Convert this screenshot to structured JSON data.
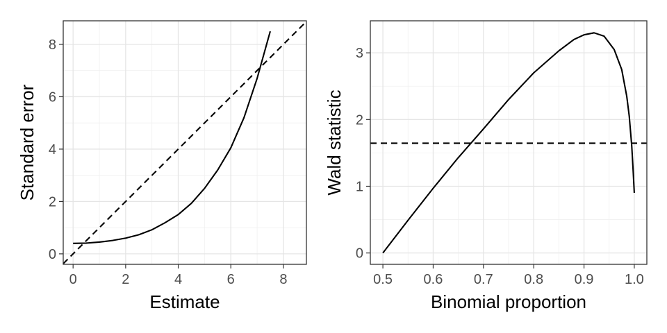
{
  "chart_data": [
    {
      "type": "line",
      "title": "",
      "xlabel": "Estimate",
      "ylabel": "Standard error",
      "xlim": [
        -0.375,
        8.875
      ],
      "ylim": [
        -0.4,
        8.9
      ],
      "xticks": [
        0,
        2,
        4,
        6,
        8
      ],
      "xtick_labels": [
        "0",
        "2",
        "4",
        "6",
        "8"
      ],
      "yticks": [
        0,
        2,
        4,
        6,
        8
      ],
      "ytick_labels": [
        "0",
        "2",
        "4",
        "6",
        "8"
      ],
      "grid": true,
      "series": [
        {
          "style": "solid",
          "color": "#000000",
          "x": [
            0,
            0.5,
            1,
            1.5,
            2,
            2.5,
            3,
            3.5,
            4,
            4.5,
            5,
            5.5,
            6,
            6.5,
            7,
            7.5
          ],
          "y": [
            0.4,
            0.41,
            0.45,
            0.51,
            0.6,
            0.73,
            0.92,
            1.19,
            1.5,
            1.93,
            2.5,
            3.2,
            4.05,
            5.2,
            6.7,
            8.5
          ]
        },
        {
          "style": "dashed",
          "color": "#000000",
          "x": [
            -0.375,
            8.875
          ],
          "y": [
            -0.375,
            8.875
          ]
        }
      ]
    },
    {
      "type": "line",
      "title": "",
      "xlabel": "Binomial proportion",
      "ylabel": "Wald statistic",
      "xlim": [
        0.475,
        1.025
      ],
      "ylim": [
        -0.17,
        3.48
      ],
      "xticks": [
        0.5,
        0.6,
        0.7,
        0.8,
        0.9,
        1.0
      ],
      "xtick_labels": [
        "0.5",
        "0.6",
        "0.7",
        "0.8",
        "0.9",
        "1.0"
      ],
      "yticks": [
        0,
        1,
        2,
        3
      ],
      "ytick_labels": [
        "0",
        "1",
        "2",
        "3"
      ],
      "grid": true,
      "series": [
        {
          "style": "solid",
          "color": "#000000",
          "x": [
            0.5,
            0.55,
            0.6,
            0.65,
            0.7,
            0.75,
            0.8,
            0.85,
            0.88,
            0.9,
            0.92,
            0.94,
            0.96,
            0.975,
            0.985,
            0.99,
            0.995,
            0.998,
            1.0
          ],
          "y": [
            0.0,
            0.49,
            0.97,
            1.43,
            1.86,
            2.3,
            2.7,
            3.03,
            3.2,
            3.27,
            3.3,
            3.25,
            3.05,
            2.75,
            2.35,
            2.05,
            1.6,
            1.2,
            0.9
          ]
        },
        {
          "style": "dashed",
          "color": "#000000",
          "x": [
            0.475,
            1.025
          ],
          "y": [
            1.645,
            1.645
          ]
        }
      ]
    }
  ]
}
